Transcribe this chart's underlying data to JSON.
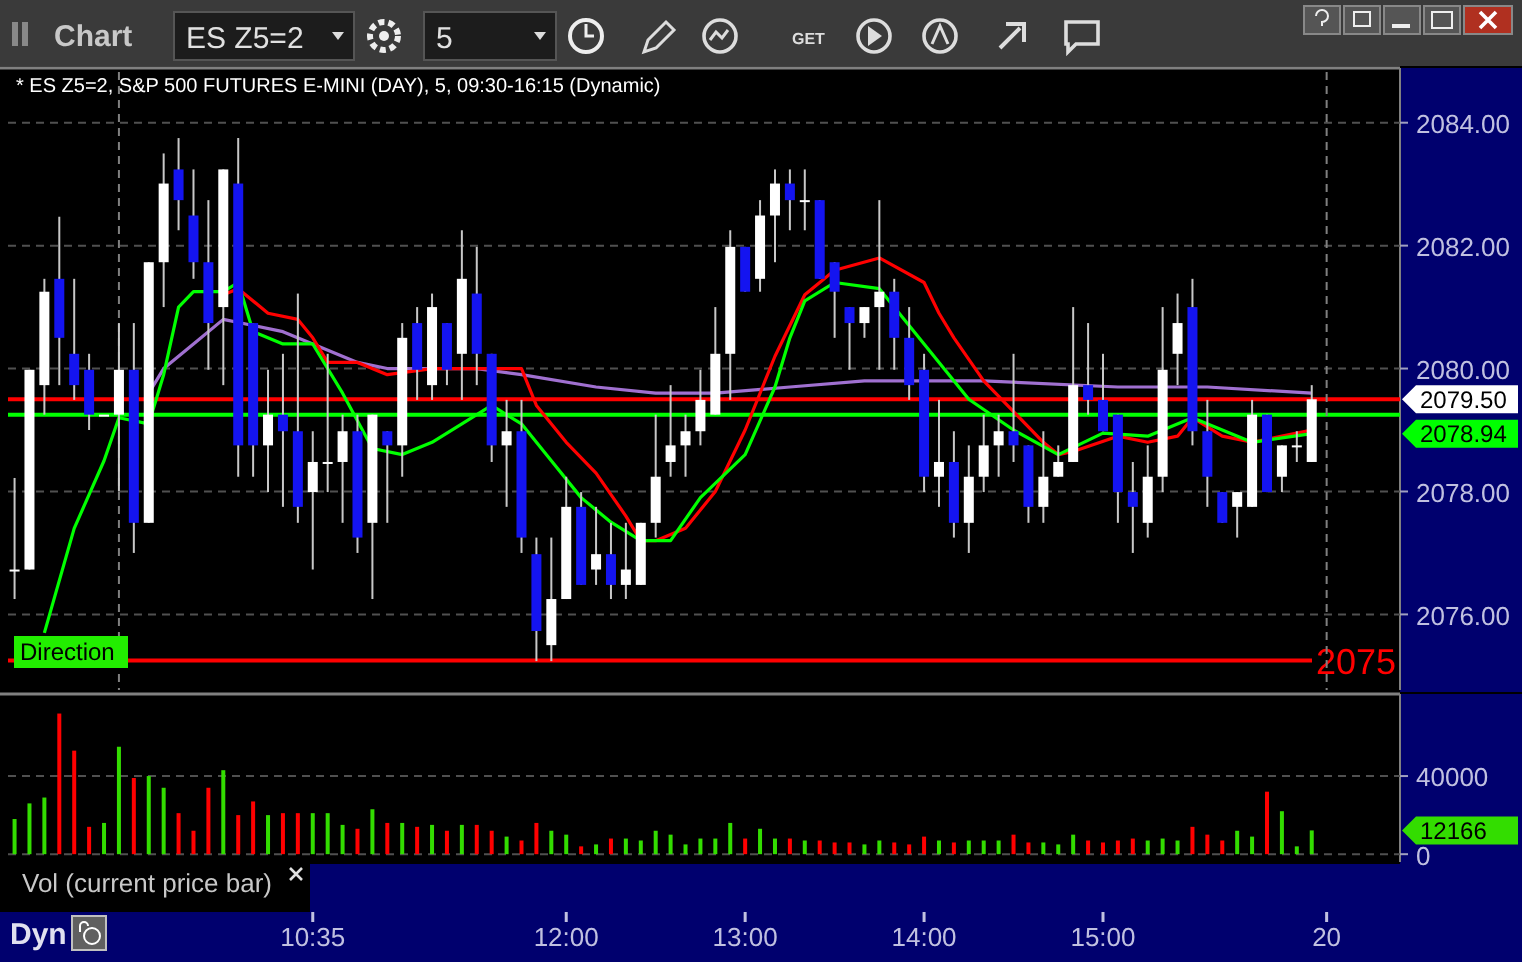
{
  "chart_data": [
    {
      "type": "candlestick",
      "title": "* ES Z5=2, S&P 500 FUTURES E-MINI (DAY), 5, 09:30-16:15 (Dynamic)",
      "x": [
        8.9167,
        9,
        9.0833,
        9.1667,
        9.25,
        9.3333,
        9.4167,
        9.5,
        9.5833,
        9.6667,
        9.75,
        9.8333,
        9.9167,
        10,
        10.0833,
        10.1667,
        10.25,
        10.3333,
        10.4167,
        10.5,
        10.5833,
        10.6667,
        10.75,
        10.8333,
        10.9167,
        11,
        11.0833,
        11.1667,
        11.25,
        11.3333,
        11.4167,
        11.5,
        11.5833,
        11.6667,
        11.75,
        11.8333,
        11.9167,
        12,
        12.0833,
        12.1667,
        12.25,
        12.3333,
        12.4167,
        12.5,
        12.5833,
        12.6667,
        12.75,
        12.8333,
        12.9167,
        13,
        13.0833,
        13.1667,
        13.25,
        13.3333,
        13.4167,
        13.5,
        13.5833,
        13.6667,
        13.75,
        13.8333,
        13.9167,
        14,
        14.0833,
        14.1667,
        14.25,
        14.3333,
        14.4167,
        14.5,
        14.5833,
        14.6667,
        14.75,
        14.8333,
        14.9167,
        15,
        15.0833,
        15.1667,
        15.25,
        15.3333,
        15.4167,
        15.5,
        15.5833,
        15.6667,
        15.75,
        15.8333,
        15.9167,
        16,
        16.0833,
        16.1667
      ],
      "ohlc": [
        [
          2076.73,
          2078.22,
          2076.25,
          2076.73
        ],
        [
          2076.73,
          2079.98,
          2076.73,
          2079.98
        ],
        [
          2079.73,
          2081.46,
          2079.25,
          2081.25
        ],
        [
          2081.46,
          2082.47,
          2079.73,
          2080.5
        ],
        [
          2080.24,
          2081.46,
          2079.49,
          2079.73
        ],
        [
          2079.98,
          2080.24,
          2079,
          2079.25
        ],
        [
          2079.25,
          2079.25,
          2079.25,
          2079.25
        ],
        [
          2079.25,
          2080.74,
          2078,
          2079.98
        ],
        [
          2079.98,
          2080.74,
          2077,
          2077.49
        ],
        [
          2077.49,
          2081.73,
          2077.49,
          2081.73
        ],
        [
          2081.73,
          2083.5,
          2081,
          2083.01
        ],
        [
          2083.24,
          2083.75,
          2082.25,
          2082.74
        ],
        [
          2082.49,
          2083.24,
          2081.46,
          2081.73
        ],
        [
          2081.73,
          2082.74,
          2079.98,
          2080.74
        ],
        [
          2081,
          2083.24,
          2079.73,
          2083.24
        ],
        [
          2083.01,
          2083.75,
          2078.24,
          2078.75
        ],
        [
          2080.74,
          2080.74,
          2078.24,
          2078.75
        ],
        [
          2078.75,
          2079.98,
          2077.99,
          2079.25
        ],
        [
          2079.25,
          2080.24,
          2077.75,
          2078.98
        ],
        [
          2078.98,
          2081.22,
          2077.49,
          2077.75
        ],
        [
          2077.99,
          2078.98,
          2076.73,
          2078.48
        ],
        [
          2078.48,
          2080.24,
          2077.99,
          2078.48
        ],
        [
          2078.48,
          2079.25,
          2077.49,
          2078.98
        ],
        [
          2078.98,
          2079.25,
          2077,
          2077.25
        ],
        [
          2077.49,
          2079.25,
          2076.25,
          2079.25
        ],
        [
          2078.98,
          2078.98,
          2077.49,
          2078.75
        ],
        [
          2078.75,
          2080.74,
          2078.24,
          2080.5
        ],
        [
          2080.74,
          2081,
          2079.49,
          2079.98
        ],
        [
          2079.73,
          2081.22,
          2079.49,
          2081
        ],
        [
          2080.74,
          2080.74,
          2079.73,
          2079.98
        ],
        [
          2080.24,
          2082.25,
          2079.49,
          2081.46
        ],
        [
          2081.22,
          2081.98,
          2079.73,
          2080.24
        ],
        [
          2080.24,
          2080.24,
          2078.48,
          2078.75
        ],
        [
          2078.75,
          2079.49,
          2077.75,
          2078.98
        ],
        [
          2078.98,
          2079.49,
          2077,
          2077.25
        ],
        [
          2076.98,
          2077.25,
          2075.24,
          2075.73
        ],
        [
          2075.5,
          2077.25,
          2075.24,
          2076.25
        ],
        [
          2076.25,
          2078.24,
          2076.25,
          2077.75
        ],
        [
          2077.75,
          2077.99,
          2076.48,
          2076.48
        ],
        [
          2076.73,
          2077.75,
          2076.48,
          2076.98
        ],
        [
          2076.98,
          2077.49,
          2076.25,
          2076.48
        ],
        [
          2076.48,
          2077.49,
          2076.25,
          2076.73
        ],
        [
          2076.48,
          2077.49,
          2076.48,
          2077.49
        ],
        [
          2077.49,
          2079.25,
          2077.25,
          2078.24
        ],
        [
          2078.48,
          2079.73,
          2078.24,
          2078.75
        ],
        [
          2078.75,
          2079.25,
          2078.24,
          2078.98
        ],
        [
          2078.98,
          2079.98,
          2078.75,
          2079.49
        ],
        [
          2079.25,
          2081,
          2079.25,
          2080.24
        ],
        [
          2080.24,
          2082.25,
          2079.49,
          2081.98
        ],
        [
          2081.98,
          2081.98,
          2081.25,
          2081.25
        ],
        [
          2081.46,
          2082.74,
          2081.25,
          2082.49
        ],
        [
          2082.49,
          2083.24,
          2081.73,
          2083.01
        ],
        [
          2083.01,
          2083.24,
          2082.25,
          2082.74
        ],
        [
          2082.74,
          2083.24,
          2082.25,
          2082.74
        ],
        [
          2082.74,
          2082.74,
          2081.46,
          2081.46
        ],
        [
          2081.73,
          2081.73,
          2080.5,
          2081.25
        ],
        [
          2081,
          2081,
          2079.98,
          2080.74
        ],
        [
          2080.74,
          2081,
          2080.5,
          2081
        ],
        [
          2081,
          2082.74,
          2079.98,
          2081.25
        ],
        [
          2081.25,
          2081.46,
          2079.98,
          2080.5
        ],
        [
          2080.5,
          2081,
          2079.49,
          2079.73
        ],
        [
          2079.98,
          2080.24,
          2077.99,
          2078.24
        ],
        [
          2078.24,
          2079.49,
          2077.75,
          2078.48
        ],
        [
          2078.48,
          2078.98,
          2077.25,
          2077.49
        ],
        [
          2077.49,
          2078.75,
          2077,
          2078.24
        ],
        [
          2078.24,
          2079.25,
          2077.99,
          2078.75
        ],
        [
          2078.75,
          2079.25,
          2078.24,
          2078.98
        ],
        [
          2078.98,
          2080.24,
          2078.48,
          2078.75
        ],
        [
          2078.75,
          2078.75,
          2077.49,
          2077.75
        ],
        [
          2077.75,
          2078.98,
          2077.49,
          2078.24
        ],
        [
          2078.24,
          2078.75,
          2078.24,
          2078.48
        ],
        [
          2078.48,
          2081,
          2078.48,
          2079.73
        ],
        [
          2079.73,
          2080.74,
          2079.25,
          2079.49
        ],
        [
          2079.49,
          2080.24,
          2078.98,
          2078.98
        ],
        [
          2079.25,
          2079.25,
          2077.49,
          2077.99
        ],
        [
          2077.99,
          2078.48,
          2077,
          2077.75
        ],
        [
          2077.49,
          2078.75,
          2077.25,
          2078.24
        ],
        [
          2078.24,
          2081,
          2077.99,
          2079.98
        ],
        [
          2080.24,
          2081.22,
          2079.73,
          2080.74
        ],
        [
          2081,
          2081.46,
          2078.75,
          2078.98
        ],
        [
          2078.98,
          2079.49,
          2077.75,
          2078.24
        ],
        [
          2077.99,
          2077.99,
          2077.49,
          2077.49
        ],
        [
          2077.75,
          2077.99,
          2077.25,
          2077.99
        ],
        [
          2077.75,
          2079.49,
          2077.75,
          2079.25
        ],
        [
          2079.25,
          2079.25,
          2077.99,
          2077.99
        ],
        [
          2078.24,
          2078.75,
          2077.99,
          2078.75
        ],
        [
          2078.75,
          2078.98,
          2078.48,
          2078.75
        ],
        [
          2078.48,
          2079.73,
          2078.48,
          2079.5
        ]
      ],
      "colors": [
        "#ffffff",
        "#ffffff",
        "#ffffff",
        "#1414f0",
        "#1414f0",
        "#1414f0",
        "#ffffff",
        "#ffffff",
        "#1414f0",
        "#ffffff",
        "#ffffff",
        "#1414f0",
        "#1414f0",
        "#1414f0",
        "#ffffff",
        "#1414f0",
        "#1414f0",
        "#ffffff",
        "#1414f0",
        "#1414f0",
        "#ffffff",
        "#ffffff",
        "#ffffff",
        "#1414f0",
        "#ffffff",
        "#1414f0",
        "#ffffff",
        "#1414f0",
        "#ffffff",
        "#1414f0",
        "#ffffff",
        "#1414f0",
        "#1414f0",
        "#ffffff",
        "#1414f0",
        "#1414f0",
        "#ffffff",
        "#ffffff",
        "#1414f0",
        "#ffffff",
        "#1414f0",
        "#ffffff",
        "#ffffff",
        "#ffffff",
        "#ffffff",
        "#ffffff",
        "#ffffff",
        "#ffffff",
        "#ffffff",
        "#1414f0",
        "#ffffff",
        "#ffffff",
        "#1414f0",
        "#ffffff",
        "#1414f0",
        "#1414f0",
        "#1414f0",
        "#ffffff",
        "#ffffff",
        "#1414f0",
        "#1414f0",
        "#1414f0",
        "#ffffff",
        "#1414f0",
        "#ffffff",
        "#ffffff",
        "#ffffff",
        "#1414f0",
        "#1414f0",
        "#ffffff",
        "#ffffff",
        "#ffffff",
        "#1414f0",
        "#1414f0",
        "#1414f0",
        "#1414f0",
        "#ffffff",
        "#ffffff",
        "#ffffff",
        "#1414f0",
        "#1414f0",
        "#1414f0",
        "#ffffff",
        "#ffffff",
        "#1414f0",
        "#ffffff",
        "#ffffff",
        "#ffffff"
      ],
      "series": [
        {
          "type": "line",
          "color": "#a070d0",
          "x": [
            9.6667,
            9.75,
            9.9167,
            10.0833,
            10.25,
            10.4167,
            10.5833,
            10.8333,
            11,
            11.5,
            11.75,
            12.1667,
            12.5,
            12.8333,
            13.25,
            13.6667,
            14.0833,
            14.3333,
            15.0833,
            15.5833,
            16.1667
          ],
          "values": [
            2079.6,
            2080,
            2080.4,
            2080.8,
            2080.7,
            2080.6,
            2080.4,
            2080.1,
            2080,
            2080,
            2079.9,
            2079.7,
            2079.6,
            2079.6,
            2079.7,
            2079.8,
            2079.8,
            2079.8,
            2079.7,
            2079.7,
            2079.6
          ]
        },
        {
          "type": "line",
          "color": "#ff0000",
          "x": [
            10.0833,
            10.1667,
            10.3333,
            10.5,
            10.5833,
            10.6667,
            10.8333,
            11,
            11.25,
            11.6667,
            11.75,
            11.8333,
            12,
            12.1667,
            12.3333,
            12.4167,
            12.5,
            12.6667,
            12.8333,
            13,
            13.1667,
            13.3333,
            13.5,
            13.75,
            14,
            14.0833,
            14.1667,
            14.3333,
            14.5,
            14.6667,
            14.75,
            14.8333,
            15.0833,
            15.25,
            15.4167,
            15.5,
            15.6667,
            15.8333,
            16,
            16.1667
          ],
          "values": [
            2081.2,
            2081.3,
            2080.9,
            2080.8,
            2080.5,
            2080.1,
            2080.1,
            2079.9,
            2080,
            2080,
            2080,
            2079.4,
            2078.8,
            2078.3,
            2077.6,
            2077.2,
            2077.2,
            2077.4,
            2078,
            2079,
            2080.2,
            2081.2,
            2081.6,
            2081.8,
            2081.4,
            2080.9,
            2080.5,
            2079.8,
            2079.3,
            2078.8,
            2078.6,
            2078.65,
            2078.9,
            2078.8,
            2078.9,
            2079.2,
            2078.9,
            2078.8,
            2078.9,
            2079
          ]
        },
        {
          "type": "line",
          "color": "#00ff00",
          "x": [
            9.0833,
            9.25,
            9.4167,
            9.5,
            9.6667,
            9.75,
            9.8333,
            9.9167,
            10.0833,
            10.1667,
            10.25,
            10.4167,
            10.5833,
            10.75,
            10.9167,
            11.0833,
            11.25,
            11.4167,
            11.5833,
            11.75,
            11.9167,
            12.0833,
            12.25,
            12.4167,
            12.5833,
            12.75,
            13,
            13.1667,
            13.25,
            13.3333,
            13.5,
            13.75,
            14,
            14.25,
            14.5,
            14.75,
            15,
            15.25,
            15.5,
            15.8333,
            16.1667
          ],
          "values": [
            2075.7,
            2077.4,
            2078.5,
            2079.2,
            2079.1,
            2079.9,
            2081,
            2081.25,
            2081.25,
            2081.4,
            2080.6,
            2080.4,
            2080.4,
            2079.6,
            2078.7,
            2078.6,
            2078.8,
            2079.1,
            2079.4,
            2079.1,
            2078.5,
            2077.9,
            2077.5,
            2077.2,
            2077.2,
            2077.9,
            2078.6,
            2079.7,
            2080.5,
            2081.1,
            2081.4,
            2081.3,
            2080.4,
            2079.5,
            2079,
            2078.6,
            2078.95,
            2078.9,
            2079.2,
            2078.8,
            2078.94
          ]
        }
      ],
      "ref_lines": [
        {
          "axis": "y",
          "value": 2079.25,
          "color": "#00ff00"
        },
        {
          "axis": "y",
          "value": 2079.5,
          "color": "#ff0000"
        },
        {
          "axis": "y",
          "value": 2075.25,
          "label": "2075",
          "color": "#ff0000"
        },
        {
          "axis": "x",
          "value": 9.5,
          "color": "#808080",
          "line_style": "dashed"
        },
        {
          "axis": "x",
          "value": 16.25,
          "color": "#808080",
          "line_style": "dashed"
        }
      ],
      "annotations": [
        "Chart",
        "ES Z5=2",
        "5",
        "GET",
        "Direction",
        "2079.50",
        "2078.94"
      ],
      "xlim": [
        8.88,
        16.66
      ],
      "ylim": [
        2074.77,
        2084.89
      ],
      "yticks": [
        {
          "value": 2076,
          "label": "2076.00"
        },
        {
          "value": 2078,
          "label": "2078.00"
        },
        {
          "value": 2080,
          "label": "2080.00"
        },
        {
          "value": 2082,
          "label": "2082.00"
        },
        {
          "value": 2084,
          "label": "2084.00"
        }
      ],
      "grid": "y",
      "tick_labels": "y"
    },
    {
      "type": "bar",
      "x": [
        8.9167,
        9,
        9.0833,
        9.1667,
        9.25,
        9.3333,
        9.4167,
        9.5,
        9.5833,
        9.6667,
        9.75,
        9.8333,
        9.9167,
        10,
        10.0833,
        10.1667,
        10.25,
        10.3333,
        10.4167,
        10.5,
        10.5833,
        10.6667,
        10.75,
        10.8333,
        10.9167,
        11,
        11.0833,
        11.1667,
        11.25,
        11.3333,
        11.4167,
        11.5,
        11.5833,
        11.6667,
        11.75,
        11.8333,
        11.9167,
        12,
        12.0833,
        12.1667,
        12.25,
        12.3333,
        12.4167,
        12.5,
        12.5833,
        12.6667,
        12.75,
        12.8333,
        12.9167,
        13,
        13.0833,
        13.1667,
        13.25,
        13.3333,
        13.4167,
        13.5,
        13.5833,
        13.6667,
        13.75,
        13.8333,
        13.9167,
        14,
        14.0833,
        14.1667,
        14.25,
        14.3333,
        14.4167,
        14.5,
        14.5833,
        14.6667,
        14.75,
        14.8333,
        14.9167,
        15,
        15.0833,
        15.1667,
        15.25,
        15.3333,
        15.4167,
        15.5,
        15.5833,
        15.6667,
        15.75,
        15.8333,
        15.9167,
        16,
        16.0833,
        16.1667
      ],
      "values": [
        18000,
        26000,
        29000,
        72000,
        53000,
        14000,
        16000,
        55000,
        39000,
        40000,
        34000,
        21000,
        12000,
        34000,
        43000,
        20000,
        27000,
        20000,
        21000,
        21000,
        21000,
        21000,
        15000,
        13000,
        23000,
        16000,
        16000,
        14000,
        15000,
        12000,
        15000,
        15000,
        12000,
        9000,
        7000,
        16000,
        12000,
        10000,
        4000,
        5000,
        8000,
        8000,
        7000,
        12000,
        10000,
        5000,
        8000,
        8000,
        16000,
        8000,
        13000,
        8000,
        8000,
        7000,
        7000,
        6000,
        6000,
        5000,
        7000,
        6000,
        5000,
        9000,
        7000,
        6000,
        7000,
        7000,
        7000,
        10000,
        6000,
        6000,
        5000,
        10000,
        7000,
        6000,
        7000,
        8000,
        7000,
        8000,
        7000,
        14000,
        10000,
        7000,
        12000,
        9000,
        32000,
        22000,
        4000,
        12166
      ],
      "colors": [
        "#33dd00",
        "#33dd00",
        "#33dd00",
        "#ff0000",
        "#ff0000",
        "#ff0000",
        "#33dd00",
        "#33dd00",
        "#ff0000",
        "#33dd00",
        "#33dd00",
        "#ff0000",
        "#ff0000",
        "#ff0000",
        "#33dd00",
        "#ff0000",
        "#ff0000",
        "#33dd00",
        "#ff0000",
        "#ff0000",
        "#33dd00",
        "#33dd00",
        "#33dd00",
        "#ff0000",
        "#33dd00",
        "#ff0000",
        "#33dd00",
        "#ff0000",
        "#33dd00",
        "#ff0000",
        "#33dd00",
        "#ff0000",
        "#ff0000",
        "#33dd00",
        "#ff0000",
        "#ff0000",
        "#33dd00",
        "#33dd00",
        "#ff0000",
        "#33dd00",
        "#ff0000",
        "#33dd00",
        "#33dd00",
        "#33dd00",
        "#33dd00",
        "#33dd00",
        "#33dd00",
        "#33dd00",
        "#33dd00",
        "#ff0000",
        "#33dd00",
        "#33dd00",
        "#ff0000",
        "#33dd00",
        "#ff0000",
        "#ff0000",
        "#ff0000",
        "#33dd00",
        "#33dd00",
        "#ff0000",
        "#ff0000",
        "#ff0000",
        "#33dd00",
        "#ff0000",
        "#33dd00",
        "#33dd00",
        "#33dd00",
        "#ff0000",
        "#ff0000",
        "#33dd00",
        "#33dd00",
        "#33dd00",
        "#ff0000",
        "#ff0000",
        "#ff0000",
        "#ff0000",
        "#33dd00",
        "#33dd00",
        "#33dd00",
        "#ff0000",
        "#ff0000",
        "#ff0000",
        "#33dd00",
        "#33dd00",
        "#ff0000",
        "#33dd00",
        "#33dd00",
        "#33dd00"
      ],
      "annotations": [
        "Vol (current price bar)",
        "Dyn",
        "12166",
        "20"
      ],
      "xlim": [
        8.88,
        16.66
      ],
      "ylim": [
        -4000,
        82000
      ],
      "xticks": [
        {
          "value": 10.5833,
          "label": "10:35"
        },
        {
          "value": 12,
          "label": "12:00"
        },
        {
          "value": 13,
          "label": "13:00"
        },
        {
          "value": 14,
          "label": "14:00"
        },
        {
          "value": 15,
          "label": "15:00"
        }
      ],
      "yticks": [
        0,
        40000
      ],
      "grid": "y"
    }
  ]
}
